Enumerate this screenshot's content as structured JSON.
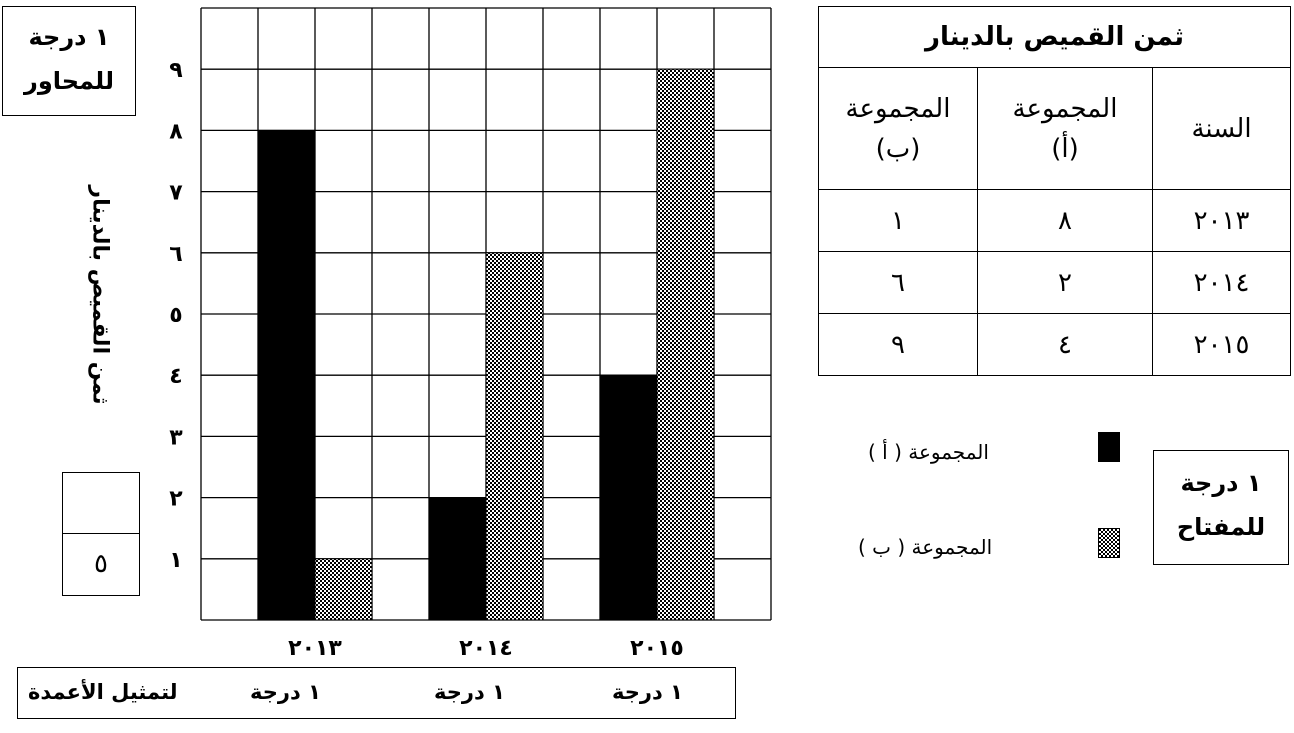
{
  "chart_data": {
    "type": "bar",
    "categories": [
      "٢٠١٣",
      "٢٠١٤",
      "٢٠١٥"
    ],
    "series": [
      {
        "name": "المجموعة ( أ )",
        "values": [
          8,
          2,
          4
        ]
      },
      {
        "name": "المجموعة ( ب )",
        "values": [
          1,
          6,
          9
        ]
      }
    ],
    "ylabel": "ثمن القميص بالدينار",
    "xlabel": "",
    "ylim": [
      0,
      10
    ],
    "y_ticks": [
      "١",
      "٢",
      "٣",
      "٤",
      "٥",
      "٦",
      "٧",
      "٨",
      "٩"
    ],
    "grid": true,
    "legend_position": "right",
    "colors": {
      "series_a": "#000000",
      "series_b_pattern": "checkered"
    }
  },
  "axis_grade": {
    "line1": "١ درجة",
    "line2": "للمحاور"
  },
  "score_box": {
    "top": "",
    "bottom": "٥"
  },
  "bottom_strip": {
    "bars_label": "لتمثيل الأعمدة",
    "grade_2013": "١ درجة",
    "grade_2014": "١ درجة",
    "grade_2015": "١ درجة"
  },
  "table": {
    "title": "ثمن القميص بالدينار",
    "col_year": "السنة",
    "col_a_line1": "المجموعة",
    "col_a_line2": "(أ)",
    "col_b_line1": "المجموعة",
    "col_b_line2": "(ب)",
    "rows": [
      {
        "year": "٢٠١٣",
        "a": "٨",
        "b": "١"
      },
      {
        "year": "٢٠١٤",
        "a": "٢",
        "b": "٦"
      },
      {
        "year": "٢٠١٥",
        "a": "٤",
        "b": "٩"
      }
    ]
  },
  "legend": {
    "a": "المجموعة ( أ )",
    "b": "المجموعة ( ب )"
  },
  "key_grade": {
    "line1": "١ درجة",
    "line2": "للمفتاح"
  }
}
